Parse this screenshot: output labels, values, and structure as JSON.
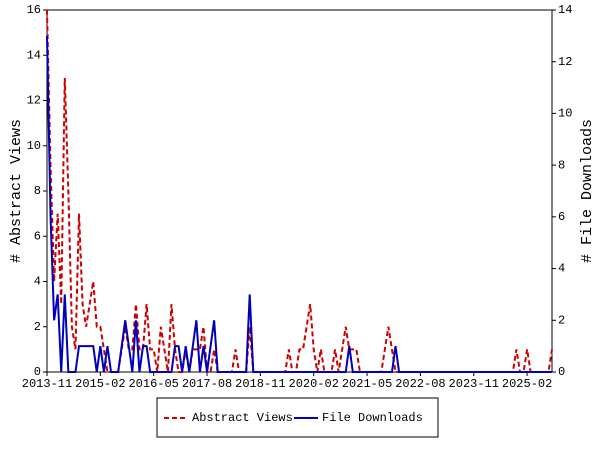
{
  "chart_data": {
    "type": "line",
    "x": [
      "2013-11",
      "2013-12",
      "2014-01",
      "2014-02",
      "2014-03",
      "2014-04",
      "2014-05",
      "2014-06",
      "2014-07",
      "2014-08",
      "2014-09",
      "2014-10",
      "2014-11",
      "2014-12",
      "2015-01",
      "2015-02",
      "2015-03",
      "2015-04",
      "2015-05",
      "2015-06",
      "2015-07",
      "2015-08",
      "2015-09",
      "2015-10",
      "2015-11",
      "2015-12",
      "2016-01",
      "2016-02",
      "2016-03",
      "2016-04",
      "2016-05",
      "2016-06",
      "2016-07",
      "2016-08",
      "2016-09",
      "2016-10",
      "2016-11",
      "2016-12",
      "2017-01",
      "2017-02",
      "2017-03",
      "2017-04",
      "2017-05",
      "2017-06",
      "2017-07",
      "2017-08",
      "2017-09",
      "2017-10",
      "2017-11",
      "2017-12",
      "2018-01",
      "2018-02",
      "2018-03",
      "2018-04",
      "2018-05",
      "2018-06",
      "2018-07",
      "2018-08",
      "2018-09",
      "2018-10",
      "2018-11",
      "2018-12",
      "2019-01",
      "2019-02",
      "2019-03",
      "2019-04",
      "2019-05",
      "2019-06",
      "2019-07",
      "2019-08",
      "2019-09",
      "2019-10",
      "2019-11",
      "2019-12",
      "2020-01",
      "2020-02",
      "2020-03",
      "2020-04",
      "2020-05",
      "2020-06",
      "2020-07",
      "2020-08",
      "2020-09",
      "2020-10",
      "2020-11",
      "2020-12",
      "2021-01",
      "2021-02",
      "2021-03",
      "2021-04",
      "2021-05",
      "2021-06",
      "2021-07",
      "2021-08",
      "2021-09",
      "2021-10",
      "2021-11",
      "2021-12",
      "2022-01",
      "2022-02",
      "2022-03",
      "2022-04",
      "2022-05",
      "2022-06",
      "2022-07",
      "2022-08",
      "2022-09",
      "2022-10",
      "2022-11",
      "2022-12",
      "2023-01",
      "2023-02",
      "2023-03",
      "2023-04",
      "2023-05",
      "2023-06",
      "2023-07",
      "2023-08",
      "2023-09",
      "2023-10",
      "2023-11",
      "2023-12",
      "2024-01",
      "2024-02",
      "2024-03",
      "2024-04",
      "2024-05",
      "2024-06",
      "2024-07",
      "2024-08",
      "2024-09",
      "2024-10",
      "2024-11",
      "2024-12",
      "2025-01",
      "2025-02",
      "2025-03",
      "2025-04",
      "2025-05",
      "2025-06",
      "2025-07",
      "2025-08",
      "2025-09"
    ],
    "series": [
      {
        "name": "Abstract Views",
        "color": "#cc0000",
        "dashed": true,
        "axis": "y",
        "values": [
          16,
          9,
          4,
          7,
          3,
          13,
          8,
          2,
          1,
          7,
          3,
          2,
          3,
          4,
          2,
          2,
          1,
          0,
          0,
          0,
          0,
          1,
          2,
          1,
          1,
          3,
          1,
          1,
          3,
          1,
          1,
          0,
          2,
          1,
          0,
          3,
          1,
          0,
          0,
          1,
          0,
          1,
          1,
          1,
          2,
          0,
          0,
          1,
          0,
          0,
          0,
          0,
          0,
          1,
          0,
          0,
          0,
          2,
          0,
          0,
          0,
          0,
          0,
          0,
          0,
          0,
          0,
          0,
          1,
          0,
          0,
          1,
          1,
          2,
          3,
          1,
          0,
          1,
          0,
          0,
          0,
          1,
          0,
          1,
          2,
          1,
          1,
          1,
          0,
          0,
          0,
          0,
          0,
          0,
          0,
          1,
          2,
          1,
          0,
          0,
          0,
          0,
          0,
          0,
          0,
          0,
          0,
          0,
          0,
          0,
          0,
          0,
          0,
          0,
          0,
          0,
          0,
          0,
          0,
          0,
          0,
          0,
          0,
          0,
          0,
          0,
          0,
          0,
          0,
          0,
          0,
          0,
          1,
          0,
          0,
          1,
          0,
          0,
          0,
          0,
          0,
          0,
          1
        ]
      },
      {
        "name": "File Downloads",
        "color": "#0000bb",
        "dashed": false,
        "axis": "y2",
        "values": [
          13,
          6,
          2,
          3,
          0,
          3,
          0,
          0,
          0,
          1,
          1,
          1,
          1,
          1,
          0,
          1,
          0,
          1,
          0,
          0,
          0,
          1,
          2,
          1,
          0,
          2,
          0,
          1,
          1,
          0,
          0,
          0,
          0,
          0,
          0,
          0,
          1,
          1,
          0,
          1,
          0,
          1,
          2,
          0,
          1,
          0,
          1,
          2,
          0,
          0,
          0,
          0,
          0,
          0,
          0,
          0,
          0,
          3,
          0,
          0,
          0,
          0,
          0,
          0,
          0,
          0,
          0,
          0,
          0,
          0,
          0,
          0,
          0,
          0,
          0,
          0,
          0,
          0,
          0,
          0,
          0,
          0,
          0,
          0,
          0,
          1,
          0,
          0,
          0,
          0,
          0,
          0,
          0,
          0,
          0,
          0,
          0,
          0,
          1,
          0,
          0,
          0,
          0,
          0,
          0,
          0,
          0,
          0,
          0,
          0,
          0,
          0,
          0,
          0,
          0,
          0,
          0,
          0,
          0,
          0,
          0,
          0,
          0,
          0,
          0,
          0,
          0,
          0,
          0,
          0,
          0,
          0,
          0,
          0,
          0,
          0,
          0,
          0,
          0,
          0,
          0,
          0,
          0
        ]
      }
    ],
    "ylabel": "# Abstract Views",
    "y2label": "# File Downloads",
    "xlim": [
      "2013-11",
      "2025-09"
    ],
    "xticks": [
      "2013-11",
      "2015-02",
      "2016-05",
      "2017-08",
      "2018-11",
      "2020-02",
      "2021-05",
      "2022-08",
      "2023-11",
      "2025-02"
    ],
    "ylim": [
      0,
      16
    ],
    "yticks": [
      0,
      2,
      4,
      6,
      8,
      10,
      12,
      14,
      16
    ],
    "y2lim": [
      0,
      14
    ],
    "y2ticks": [
      0,
      2,
      4,
      6,
      8,
      10,
      12,
      14
    ],
    "legend": "bottom"
  }
}
